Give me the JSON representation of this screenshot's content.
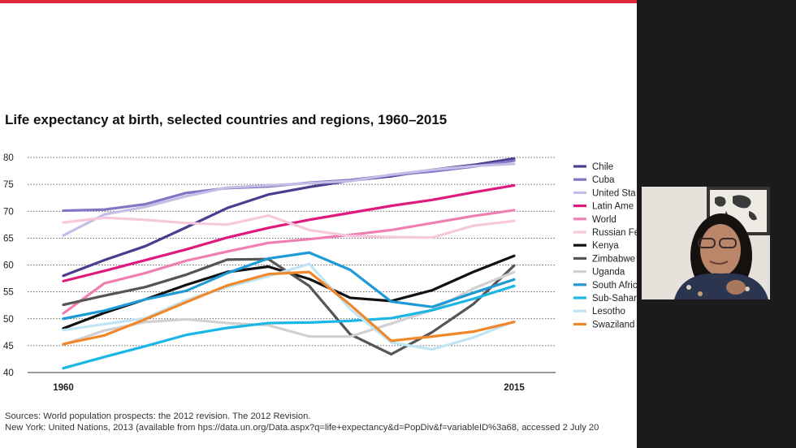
{
  "slide": {
    "title": "Life expectancy at birth, selected countries and regions, 1960–2015",
    "sources_line1": "Sources: World population prospects: the 2012 revision. The 2012 Revision.",
    "sources_line2": "New York: United Nations, 2013 (available from hps://data.un.org/Data.aspx?q=life+expectancy&d=PopDiv&f=variableID%3a68, accessed 2 July 20"
  },
  "colors": {
    "accent": "#e0283a",
    "grid": "#333333"
  },
  "chart_data": {
    "type": "line",
    "title": "Life expectancy at birth, selected countries and regions, 1960–2015",
    "xlabel": "",
    "ylabel": "",
    "xlim": [
      1960,
      2015
    ],
    "ylim": [
      40,
      80
    ],
    "yticks": [
      40,
      45,
      50,
      55,
      60,
      65,
      70,
      75,
      80
    ],
    "ytick_labels": [
      "40",
      "45",
      "50",
      "55",
      "60",
      "65",
      "70",
      "75",
      "80"
    ],
    "xtick_labels": [
      "1960",
      "2015"
    ],
    "legend_position": "right",
    "x": [
      1960,
      1965,
      1970,
      1975,
      1980,
      1985,
      1990,
      1995,
      2000,
      2005,
      2010,
      2015
    ],
    "series": [
      {
        "name": "Chile",
        "color": "#4a3d8f",
        "values": [
          58,
          60.9,
          63.5,
          67,
          70.6,
          73.1,
          74.5,
          75.7,
          76.5,
          77.7,
          78.6,
          79.8
        ]
      },
      {
        "name": "Cuba",
        "color": "#8275c4",
        "values": [
          70.1,
          70.3,
          71.3,
          73.4,
          74.3,
          74.6,
          75.3,
          75.8,
          76.7,
          77.4,
          78.3,
          79.4
        ]
      },
      {
        "name": "United States",
        "color": "#c4bde6",
        "values": [
          65.5,
          69.4,
          70.8,
          72.8,
          74.4,
          74.8,
          75.2,
          75.6,
          76.8,
          77.7,
          78.4,
          78.8
        ]
      },
      {
        "name": "Latin America",
        "color": "#e0197d",
        "values": [
          57,
          58.9,
          60.9,
          62.9,
          65.1,
          66.9,
          68.4,
          69.7,
          71,
          72.1,
          73.5,
          74.8
        ]
      },
      {
        "name": "World",
        "color": "#f07fb1",
        "values": [
          51,
          56.6,
          58.5,
          60.8,
          62.5,
          64.1,
          64.8,
          65.6,
          66.5,
          67.8,
          69.1,
          70.2
        ]
      },
      {
        "name": "Russian Federation",
        "color": "#f7c8dc",
        "values": [
          67.9,
          68.8,
          68.4,
          67.8,
          67.5,
          69.2,
          66.5,
          65.4,
          65.2,
          65.1,
          67.3,
          68.2
        ]
      },
      {
        "name": "Kenya",
        "color": "#111111",
        "values": [
          48.2,
          51.1,
          53.6,
          56.3,
          58.7,
          59.7,
          57.4,
          53.9,
          53.3,
          55.3,
          58.7,
          61.7
        ]
      },
      {
        "name": "Zimbabwe",
        "color": "#555555",
        "values": [
          52.6,
          54.3,
          55.9,
          58.2,
          61,
          61.1,
          56.1,
          47.1,
          43.4,
          47.5,
          52.7,
          59.9
        ]
      },
      {
        "name": "Uganda",
        "color": "#d0d0d0",
        "values": [
          45.2,
          47.8,
          49.4,
          49.9,
          49.2,
          48.8,
          46.7,
          46.7,
          49.1,
          51.6,
          55.6,
          58.7
        ]
      },
      {
        "name": "South Africa",
        "color": "#1e9ad6",
        "values": [
          50,
          51.5,
          53.6,
          55.2,
          58.5,
          61.2,
          62.3,
          59.1,
          53.2,
          52.2,
          54.8,
          57.3
        ]
      },
      {
        "name": "Sub-Saharan Africa",
        "color": "#19b6e6",
        "values": [
          40.8,
          42.9,
          44.9,
          47,
          48.3,
          49.2,
          49.3,
          49.6,
          50.1,
          51.6,
          53.7,
          56.1
        ]
      },
      {
        "name": "Lesotho",
        "color": "#bfe4f4",
        "values": [
          47.9,
          49,
          50.1,
          53.5,
          55.9,
          57.9,
          60.2,
          51.8,
          45.6,
          44.3,
          46.5,
          49.5
        ]
      },
      {
        "name": "Swaziland",
        "color": "#f0872b",
        "values": [
          45.3,
          46.9,
          49.9,
          53.1,
          56.2,
          58.3,
          58.7,
          52.6,
          45.9,
          46.7,
          47.6,
          49.4
        ]
      }
    ]
  },
  "legend_labels": [
    "Chile",
    "Cuba",
    "United Sta",
    "Latin Ame",
    "World",
    "Russian Fe",
    "Kenya",
    "Zimbabwe",
    "Uganda",
    "South Afric",
    "Sub-Sahara",
    "Lesotho",
    "Swaziland"
  ]
}
